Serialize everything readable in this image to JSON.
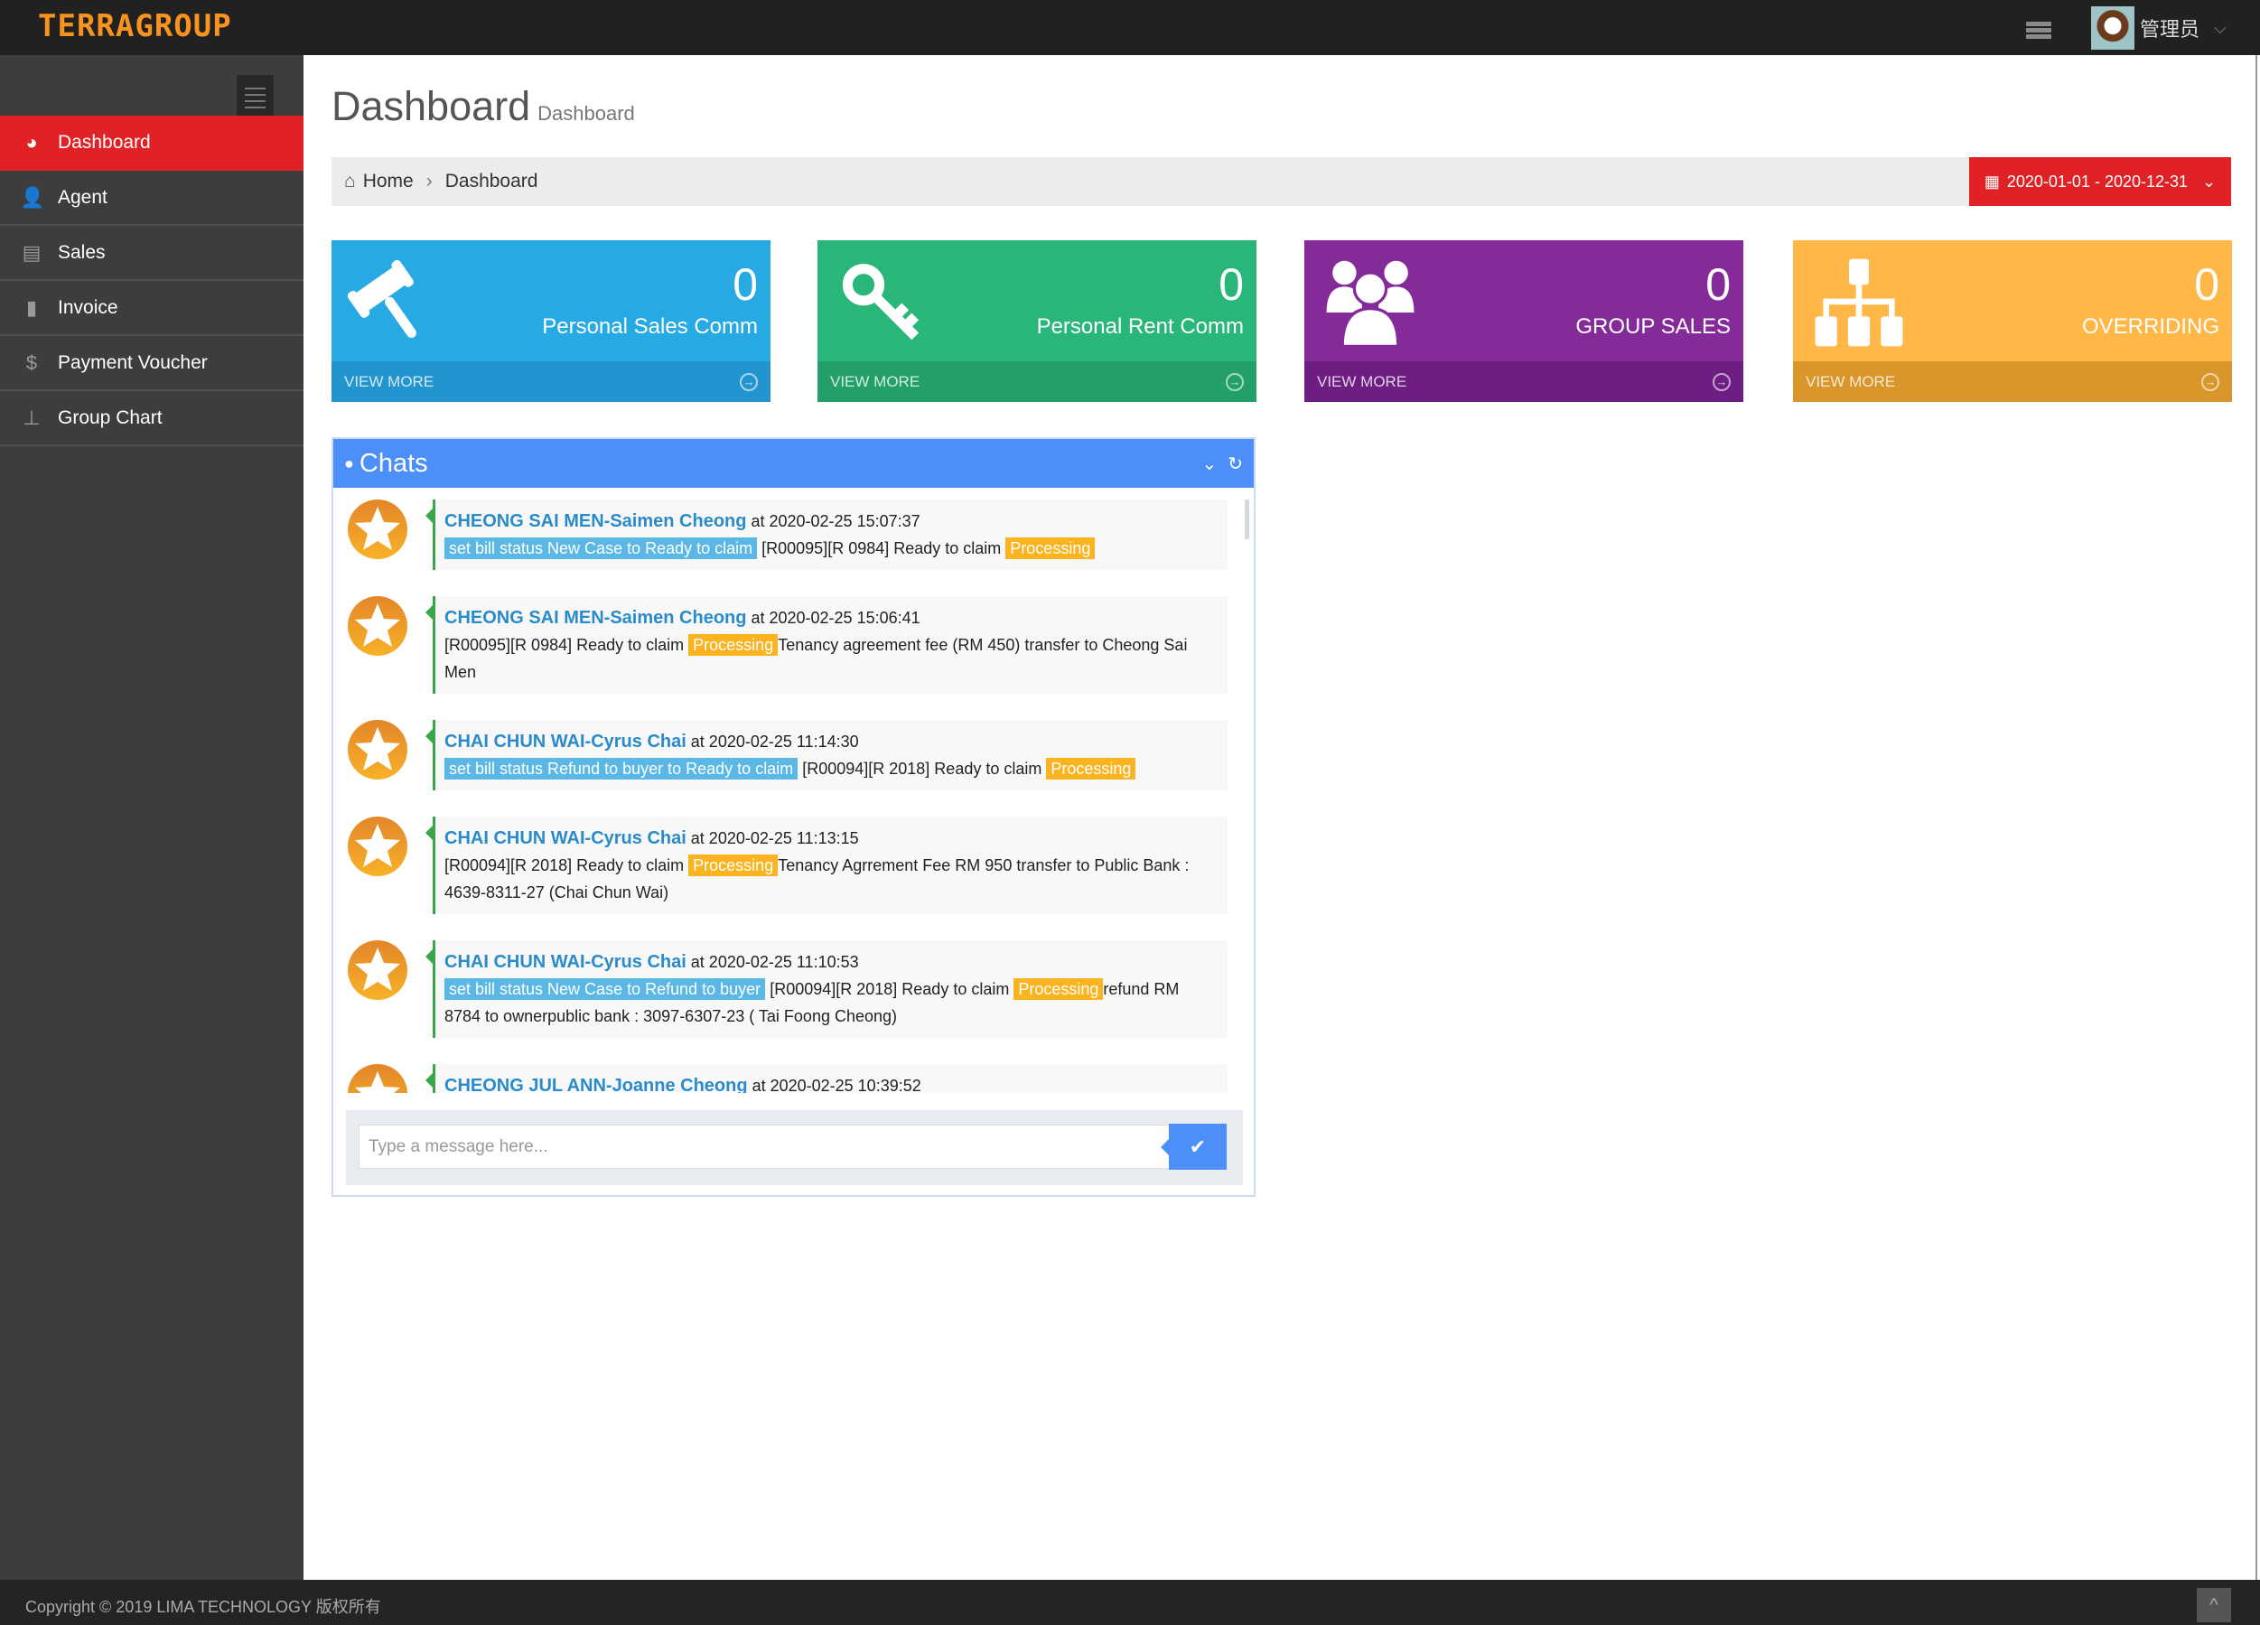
{
  "header": {
    "logo": "TERRAGROUP",
    "user_name": "管理员",
    "colors": {
      "bar": "#212121",
      "logo": "#f7931e"
    }
  },
  "sidebar": {
    "items": [
      {
        "label": "Dashboard",
        "icon": "dashboard-icon",
        "glyph": "◕",
        "active": true
      },
      {
        "label": "Agent",
        "icon": "user-icon",
        "glyph": "👤"
      },
      {
        "label": "Sales",
        "icon": "book-icon",
        "glyph": "▤"
      },
      {
        "label": "Invoice",
        "icon": "file-icon",
        "glyph": "▮"
      },
      {
        "label": "Payment Voucher",
        "icon": "dollar-icon",
        "glyph": "$"
      },
      {
        "label": "Group Chart",
        "icon": "sitemap-icon",
        "glyph": "⊥"
      }
    ],
    "active_color": "#e02126"
  },
  "page": {
    "title": "Dashboard",
    "subtitle": "Dashboard"
  },
  "breadcrumb": {
    "home": "Home",
    "current": "Dashboard"
  },
  "date_range": "2020-01-01 - 2020-12-31",
  "cards": [
    {
      "value": "0",
      "label": "Personal Sales Comm",
      "more": "VIEW MORE",
      "icon": "gavel-icon",
      "color": "#27a9e3",
      "dark": "#2295cf"
    },
    {
      "value": "0",
      "label": "Personal Rent Comm",
      "more": "VIEW MORE",
      "icon": "key-icon",
      "color": "#28b779",
      "dark": "#23a068"
    },
    {
      "value": "0",
      "label": "GROUP SALES",
      "more": "VIEW MORE",
      "icon": "users-icon",
      "color": "#852b99",
      "dark": "#6e1e82"
    },
    {
      "value": "0",
      "label": "OVERRIDING",
      "more": "VIEW MORE",
      "icon": "sitemap-icon",
      "color": "#ffb848",
      "dark": "#d9962a"
    }
  ],
  "chats": {
    "title": "Chats",
    "placeholder": "Type a message here...",
    "messages": [
      {
        "name": "CHEONG SAI MEN-Saimen Cheong",
        "at": " at 2020-02-25 15:07:37",
        "parts": [
          {
            "t": "tag",
            "text": "set bill status New Case to Ready to claim"
          },
          {
            "t": "text",
            "text": " [R00095][R 0984] Ready to claim "
          },
          {
            "t": "badge",
            "text": "Processing"
          }
        ]
      },
      {
        "name": "CHEONG SAI MEN-Saimen Cheong",
        "at": " at 2020-02-25 15:06:41",
        "parts": [
          {
            "t": "text",
            "text": "[R00095][R 0984] Ready to claim "
          },
          {
            "t": "badge",
            "text": "Processing"
          },
          {
            "t": "text",
            "text": "Tenancy agreement fee (RM 450) transfer to Cheong Sai Men"
          }
        ]
      },
      {
        "name": "CHAI CHUN WAI-Cyrus Chai",
        "at": " at 2020-02-25 11:14:30",
        "parts": [
          {
            "t": "tag",
            "text": "set bill status Refund to buyer to Ready to claim"
          },
          {
            "t": "text",
            "text": " [R00094][R 2018] Ready to claim "
          },
          {
            "t": "badge",
            "text": "Processing"
          }
        ]
      },
      {
        "name": "CHAI CHUN WAI-Cyrus Chai",
        "at": " at 2020-02-25 11:13:15",
        "parts": [
          {
            "t": "text",
            "text": "[R00094][R 2018] Ready to claim "
          },
          {
            "t": "badge",
            "text": "Processing"
          },
          {
            "t": "text",
            "text": "Tenancy Agrrement Fee RM 950 transfer to Public Bank : 4639-8311-27 (Chai Chun Wai)"
          }
        ]
      },
      {
        "name": "CHAI CHUN WAI-Cyrus Chai",
        "at": " at 2020-02-25 11:10:53",
        "parts": [
          {
            "t": "tag",
            "text": "set bill status New Case to Refund to buyer"
          },
          {
            "t": "text",
            "text": " [R00094][R 2018] Ready to claim "
          },
          {
            "t": "badge",
            "text": "Processing"
          },
          {
            "t": "text",
            "text": "refund RM 8784 to ownerpublic bank : 3097-6307-23 ( Tai Foong Cheong)"
          }
        ]
      },
      {
        "name": "CHEONG JUL ANN-Joanne Cheong",
        "at": " at 2020-02-25 10:39:52",
        "parts": []
      }
    ],
    "colors": {
      "header": "#4d8ff9",
      "tag": "#5bb8e6",
      "badge": "#fbb41f",
      "name": "#2a8bcb"
    }
  },
  "footer": {
    "copyright": "Copyright © 2019 LIMA TECHNOLOGY 版权所有"
  }
}
